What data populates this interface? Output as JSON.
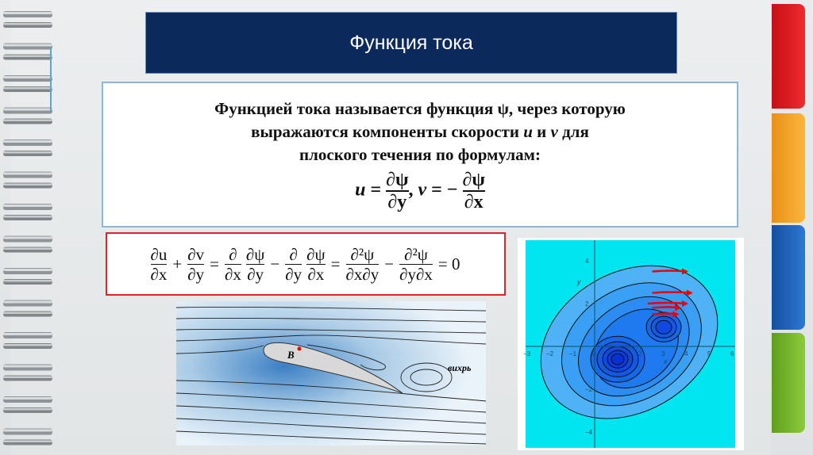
{
  "slide": {
    "title": "Функция тока",
    "definition": {
      "line1": "Функцией тока называется функция ψ, через которую",
      "line2_pre": "выражаются компоненты скорости ",
      "u": "u",
      "and": " и ",
      "v": "v",
      "line2_post": " для",
      "line3": "плоского течения по формулам:",
      "formula": {
        "u": "u",
        "eq1": " = ",
        "num": "∂ψ",
        "den_y": "∂y",
        "sep": ", ",
        "v": "v",
        "eq2": " = − ",
        "den_x": "∂x"
      }
    },
    "continuity": {
      "t1n": "∂u",
      "t1d": "∂x",
      "plus": "+",
      "t2n": "∂v",
      "t2d": "∂y",
      "eq": "=",
      "t3n": "∂",
      "t3d": "∂x",
      "t4n": "∂ψ",
      "t4d": "∂y",
      "minus": "−",
      "t5n": "∂",
      "t5d": "∂y",
      "t6n": "∂ψ",
      "t6d": "∂x",
      "t7n": "∂²ψ",
      "t7d": "∂x∂y",
      "t8n": "∂²ψ",
      "t8d": "∂y∂x",
      "zero": "= 0"
    },
    "airfoil_figure": {
      "point_label": "B",
      "vortex_label": "вихрь"
    },
    "contour_plot": {
      "x_ticks": [
        "−3",
        "−2",
        "−1",
        "0",
        "1",
        "2",
        "3",
        "4",
        "5",
        "6"
      ],
      "y_ticks": [
        "4",
        "2",
        "−2",
        "−4"
      ],
      "xlabel": "x",
      "ylabel": "y"
    }
  },
  "colors": {
    "title_bg": "#0b2a5b",
    "tab_red": "#e3161d",
    "tab_orange": "#f7a823",
    "tab_blue": "#1f64c0",
    "tab_green": "#78bb2b",
    "formula_border": "#e0232b",
    "plot_bg": "#00e5f0"
  }
}
